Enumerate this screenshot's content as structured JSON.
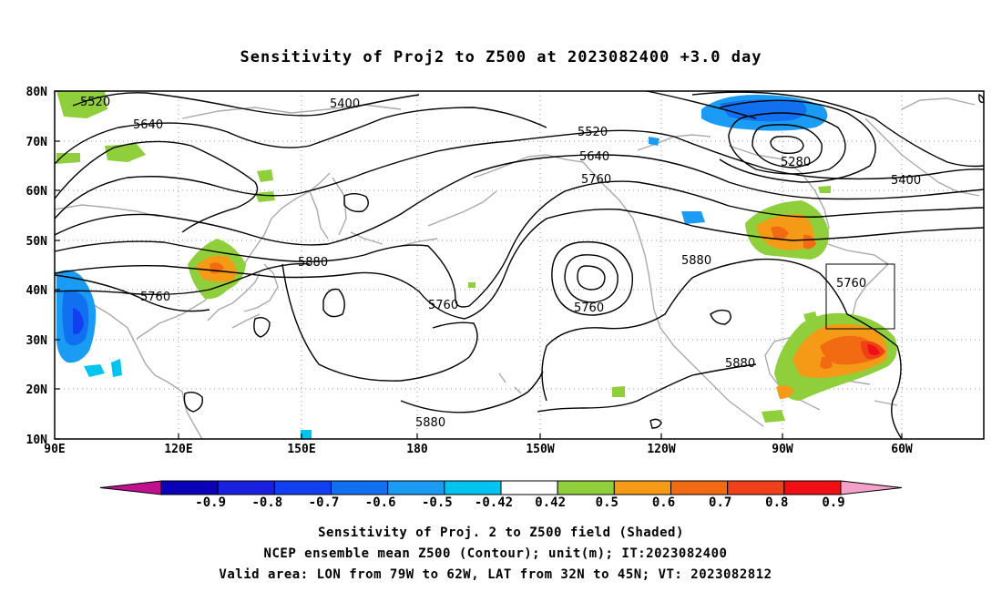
{
  "title": "Sensitivity of Proj2 to Z500 at 2023082400 +3.0 day",
  "map": {
    "lat_ticks": [
      "80N",
      "70N",
      "60N",
      "50N",
      "40N",
      "30N",
      "20N",
      "10N"
    ],
    "lon_ticks": [
      "90E",
      "120E",
      "150E",
      "180",
      "150W",
      "120W",
      "90W",
      "60W"
    ],
    "contour_labels": [
      {
        "text": "5520"
      },
      {
        "text": "5640"
      },
      {
        "text": "5400"
      },
      {
        "text": "5520"
      },
      {
        "text": "5640"
      },
      {
        "text": "5760"
      },
      {
        "text": "5280"
      },
      {
        "text": "5400"
      },
      {
        "text": "5880"
      },
      {
        "text": "5760"
      },
      {
        "text": "5760"
      },
      {
        "text": "5760"
      },
      {
        "text": "5880"
      },
      {
        "text": "5760"
      },
      {
        "text": "5880"
      },
      {
        "text": "5880"
      }
    ],
    "valid_box": {
      "lon": [
        "79W",
        "62W"
      ],
      "lat": [
        "32N",
        "45N"
      ]
    }
  },
  "colorbar": {
    "labels": [
      "-0.9",
      "-0.8",
      "-0.7",
      "-0.6",
      "-0.5",
      "-0.42",
      "0.42",
      "0.5",
      "0.6",
      "0.7",
      "0.8",
      "0.9"
    ],
    "colors": [
      "#c0108f",
      "#0a00b8",
      "#1a20e0",
      "#1040f0",
      "#1070f0",
      "#1a9cf5",
      "#00c4f0",
      "#ffffff",
      "#8fcf3c",
      "#f49a17",
      "#f26a12",
      "#f0401a",
      "#f00f14",
      "#f5a0c8"
    ]
  },
  "footer": {
    "line1": "Sensitivity of Proj. 2 to Z500 field (Shaded)",
    "line2": "NCEP ensemble mean Z500 (Contour); unit(m); IT:2023082400",
    "line3": "Valid area: LON from 79W to 62W, LAT from 32N to 45N; VT: 2023082812"
  }
}
